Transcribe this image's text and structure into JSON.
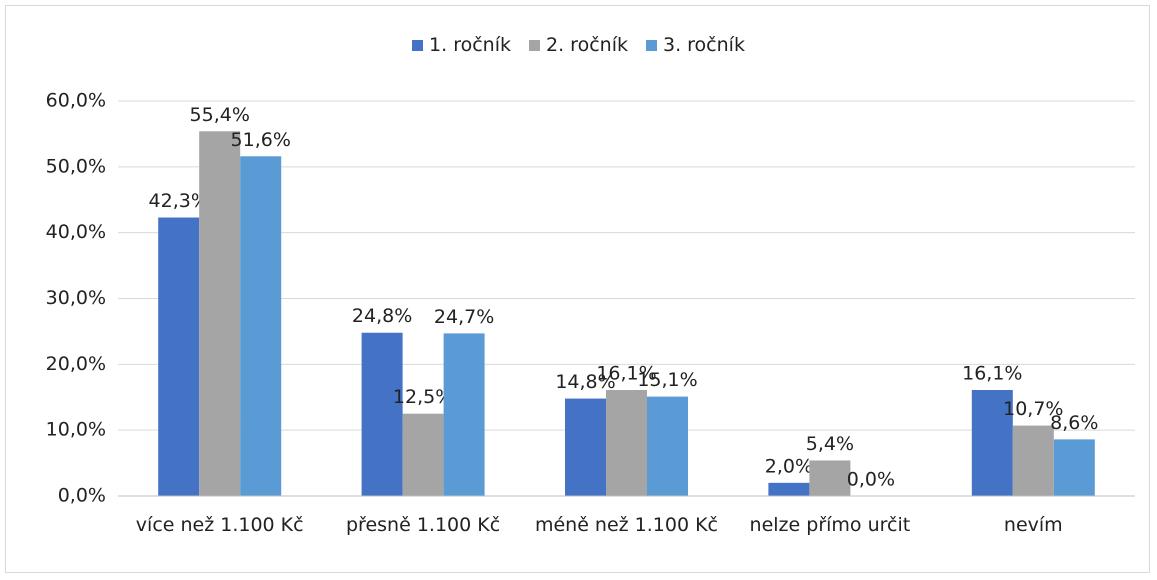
{
  "chart_data": {
    "type": "bar",
    "categories": [
      "více než 1.100 Kč",
      "přesně 1.100 Kč",
      "méně než 1.100 Kč",
      "nelze přímo určit",
      "nevím"
    ],
    "series": [
      {
        "name": "1. ročník",
        "color": "#4472c4",
        "values": [
          42.3,
          24.8,
          14.8,
          2.0,
          16.1
        ],
        "value_labels": [
          "42,3%",
          "24,8%",
          "14,8%",
          "2,0%",
          "16,1%"
        ]
      },
      {
        "name": "2. ročník",
        "color": "#a5a5a5",
        "values": [
          55.4,
          12.5,
          16.1,
          5.4,
          10.7
        ],
        "value_labels": [
          "55,4%",
          "12,5%",
          "16,1%",
          "5,4%",
          "10,7%"
        ]
      },
      {
        "name": "3. ročník",
        "color": "#5b9bd5",
        "values": [
          51.6,
          24.7,
          15.1,
          0.0,
          8.6
        ],
        "value_labels": [
          "51,6%",
          "24,7%",
          "15,1%",
          "0,0%",
          "8,6%"
        ]
      }
    ],
    "ylim": [
      0,
      60
    ],
    "yticks": [
      {
        "value": 0,
        "label": "0,0%"
      },
      {
        "value": 10,
        "label": "10,0%"
      },
      {
        "value": 20,
        "label": "20,0%"
      },
      {
        "value": 30,
        "label": "30,0%"
      },
      {
        "value": 40,
        "label": "40,0%"
      },
      {
        "value": 50,
        "label": "50,0%"
      },
      {
        "value": 60,
        "label": "60,0%"
      }
    ],
    "grid": true,
    "legend": "top"
  }
}
